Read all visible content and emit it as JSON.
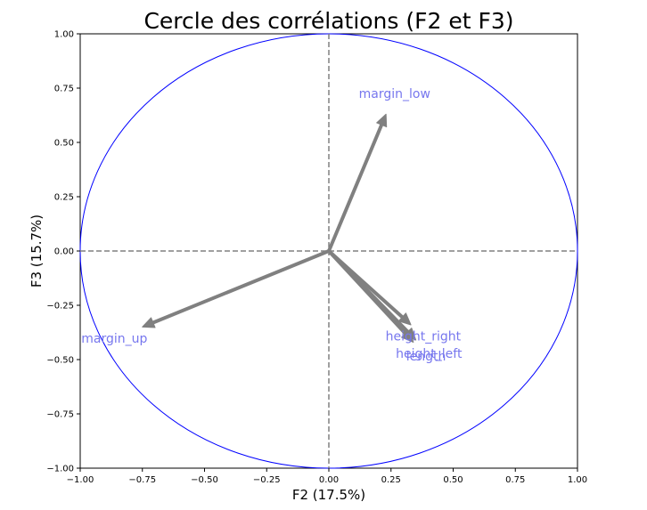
{
  "chart_data": {
    "type": "scatter",
    "title": "Cercle des corrélations (F2 et F3)",
    "xlabel": "F2 (17.5%)",
    "ylabel": "F3 (15.7%)",
    "xlim": [
      -1,
      1
    ],
    "ylim": [
      -1,
      1
    ],
    "xticks": [
      "−1.00",
      "−0.75",
      "−0.50",
      "−0.25",
      "0.00",
      "0.25",
      "0.50",
      "0.75",
      "1.00"
    ],
    "yticks": [
      "−1.00",
      "−0.75",
      "−0.50",
      "−0.25",
      "0.00",
      "0.25",
      "0.50",
      "0.75",
      "1.00"
    ],
    "grid": false,
    "vectors": [
      {
        "name": "margin_low",
        "x": 0.23,
        "y": 0.63
      },
      {
        "name": "margin_up",
        "x": -0.75,
        "y": -0.35
      },
      {
        "name": "height_right",
        "x": 0.33,
        "y": -0.34
      },
      {
        "name": "height_left",
        "x": 0.35,
        "y": -0.41
      },
      {
        "name": "length",
        "x": 0.34,
        "y": -0.42
      }
    ],
    "colors": {
      "circle": "#0000ff",
      "arrow": "#808080",
      "label": "#7777ee",
      "reference_lines": "#808080"
    }
  }
}
